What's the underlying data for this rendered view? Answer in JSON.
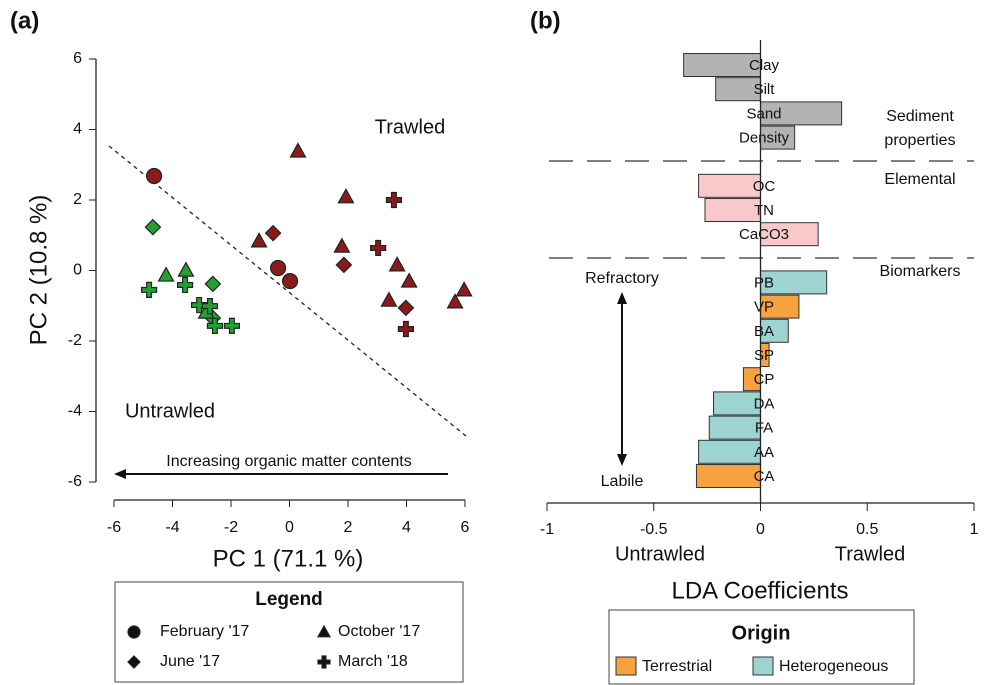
{
  "chart_data": [
    {
      "type": "scatter",
      "panel_label": "(a)",
      "xlabel": "PC 1 (71.1 %)",
      "ylabel": "PC 2 (10.8 %)",
      "xlim": [
        -6,
        6
      ],
      "ylim": [
        -6,
        6
      ],
      "xticks": [
        -6,
        -4,
        -2,
        0,
        2,
        4,
        6
      ],
      "yticks": [
        -6,
        -4,
        -2,
        0,
        2,
        4,
        6
      ],
      "annotations": [
        "Trawled",
        "Untrawled",
        "Increasing organic matter contents"
      ],
      "legend_title": "Legend",
      "series": [
        {
          "name": "February '17",
          "marker": "circle",
          "x": [
            -4.63,
            -0.39,
            0.02
          ],
          "y": [
            2.68,
            0.07,
            -0.3
          ],
          "colors": [
            "#8b1a1a",
            "#8b1a1a",
            "#8b1a1a"
          ]
        },
        {
          "name": "June '17",
          "marker": "diamond",
          "x": [
            -4.67,
            -2.62,
            -2.62,
            -0.56,
            1.86,
            3.98
          ],
          "y": [
            1.23,
            -0.38,
            -1.35,
            1.06,
            0.16,
            -1.06
          ],
          "colors": [
            "#22a032",
            "#22a032",
            "#22a032",
            "#8b1a1a",
            "#8b1a1a",
            "#8b1a1a"
          ]
        },
        {
          "name": "October '17",
          "marker": "triangle",
          "x": [
            -4.22,
            -3.54,
            -2.85,
            0.29,
            1.93,
            -1.04,
            1.79,
            3.68,
            4.09,
            3.4,
            5.97,
            5.66
          ],
          "y": [
            -0.13,
            0.01,
            -1.18,
            3.39,
            2.09,
            0.84,
            0.69,
            0.16,
            -0.3,
            -0.84,
            -0.55,
            -0.89
          ],
          "colors": [
            "#22a032",
            "#22a032",
            "#22a032",
            "#8b1a1a",
            "#8b1a1a",
            "#8b1a1a",
            "#8b1a1a",
            "#8b1a1a",
            "#8b1a1a",
            "#8b1a1a",
            "#8b1a1a",
            "#8b1a1a"
          ]
        },
        {
          "name": "March '18",
          "marker": "plus",
          "x": [
            -4.8,
            -3.57,
            -3.09,
            -2.72,
            -2.55,
            -1.97,
            3.57,
            3.03,
            3.98
          ],
          "y": [
            -0.55,
            -0.41,
            -0.98,
            -1.01,
            -1.57,
            -1.57,
            2.0,
            0.64,
            -1.66
          ],
          "colors": [
            "#22a032",
            "#22a032",
            "#22a032",
            "#22a032",
            "#22a032",
            "#22a032",
            "#8b1a1a",
            "#8b1a1a",
            "#8b1a1a"
          ]
        }
      ]
    },
    {
      "type": "hbar",
      "panel_label": "(b)",
      "xlabel": "LDA Coefficients",
      "categories": [
        "Clay",
        "Silt",
        "Sand",
        "Density",
        "OC",
        "TN",
        "CaCO3",
        "PB",
        "VP",
        "BA",
        "SP",
        "CP",
        "DA",
        "FA",
        "AA",
        "CA"
      ],
      "values": [
        -0.36,
        -0.21,
        0.38,
        0.16,
        -0.29,
        -0.26,
        0.27,
        0.31,
        0.18,
        0.13,
        0.04,
        -0.08,
        -0.22,
        -0.24,
        -0.29,
        -0.3
      ],
      "colors": [
        "#b3b3b3",
        "#b3b3b3",
        "#b3b3b3",
        "#b3b3b3",
        "#f8c8cb",
        "#f8c8cb",
        "#f8c8cb",
        "#9dd3d1",
        "#f7a13f",
        "#9dd3d1",
        "#f7a13f",
        "#f7a13f",
        "#9dd3d1",
        "#9dd3d1",
        "#9dd3d1",
        "#f7a13f"
      ],
      "xlim": [
        -1,
        1
      ],
      "xticks": [
        -1,
        -0.5,
        0,
        0.5,
        1
      ],
      "group_labels": [
        "Sediment properties",
        "Elemental",
        "Biomarkers"
      ],
      "annotations": [
        "Refractory",
        "Labile",
        "Untrawled",
        "Trawled"
      ],
      "legend_title": "Origin",
      "legend": [
        {
          "name": "Terrestrial",
          "color": "#f7a13f"
        },
        {
          "name": "Heterogeneous",
          "color": "#9dd3d1"
        }
      ]
    }
  ]
}
